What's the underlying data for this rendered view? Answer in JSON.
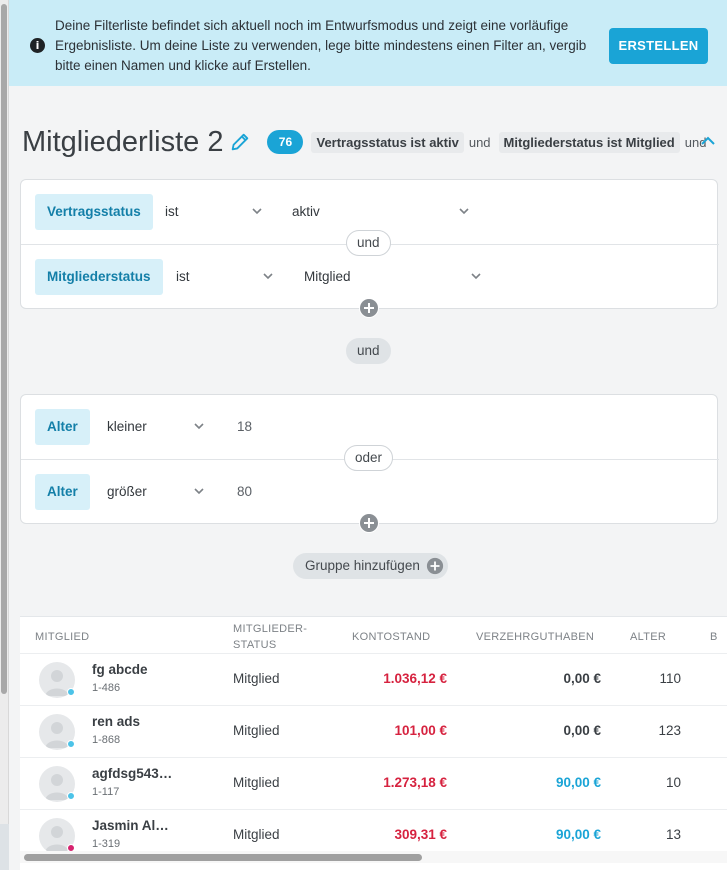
{
  "colors": {
    "accent": "#1aa4d6",
    "banner_bg": "#c9ecf7",
    "negative": "#d6223f",
    "positive": "#1aa4d6",
    "tag_bg": "#d7f0f9",
    "tag_text": "#137fa8"
  },
  "banner": {
    "icon": "info-icon",
    "message": "Deine Filterliste befindet sich aktuell noch im Entwurfsmodus und zeigt eine vorläufige Ergebnisliste. Um deine Liste zu verwenden, lege bitte mindestens einen Filter an, vergib bitte einen Namen und klicke auf Erstellen.",
    "create_label": "ERSTELLEN"
  },
  "header": {
    "title": "Mitgliederliste 2",
    "edit_icon": "pencil-icon",
    "count": "76",
    "summary": [
      {
        "chip": "Vertragsstatus ist aktiv",
        "conj": "und"
      },
      {
        "chip": "Mitgliederstatus ist Mitglied",
        "conj": "und"
      }
    ],
    "collapse_icon": "chevron-up-icon"
  },
  "group1": {
    "filters": [
      {
        "field": "Vertragsstatus",
        "operator": "ist",
        "value": "aktiv"
      },
      {
        "field": "Mitgliederstatus",
        "operator": "ist",
        "value": "Mitglied"
      }
    ],
    "connector": "und"
  },
  "group_connector": "und",
  "group2": {
    "filters": [
      {
        "field": "Alter",
        "operator": "kleiner",
        "value": "18"
      },
      {
        "field": "Alter",
        "operator": "größer",
        "value": "80"
      }
    ],
    "connector": "oder"
  },
  "add_group_label": "Gruppe hinzufügen",
  "table": {
    "columns": [
      "MITGLIED",
      "MITGLIEDER-",
      "STATUS",
      "KONTOSTAND",
      "VERZEHRGUTHABEN",
      "ALTER",
      "B"
    ],
    "rows": [
      {
        "name": "fg abcde",
        "id": "1-486",
        "status": "Mitglied",
        "kontostand": "1.036,12 €",
        "verzehr": "0,00 €",
        "alter": "110",
        "dot": "#4cc3e8",
        "konto_color": "#d6223f",
        "verz_color": "#3a3f44"
      },
      {
        "name": "ren ads",
        "id": "1-868",
        "status": "Mitglied",
        "kontostand": "101,00 €",
        "verzehr": "0,00 €",
        "alter": "123",
        "dot": "#4cc3e8",
        "konto_color": "#d6223f",
        "verz_color": "#3a3f44"
      },
      {
        "name": "agfdsg543…",
        "id": "1-117",
        "status": "Mitglied",
        "kontostand": "1.273,18 €",
        "verzehr": "90,00 €",
        "alter": "10",
        "dot": "#4cc3e8",
        "konto_color": "#d6223f",
        "verz_color": "#1aa4d6"
      },
      {
        "name": "Jasmin Al…",
        "id": "1-319",
        "status": "Mitglied",
        "kontostand": "309,31 €",
        "verzehr": "90,00 €",
        "alter": "13",
        "dot": "#d6226e",
        "konto_color": "#d6223f",
        "verz_color": "#1aa4d6"
      }
    ]
  }
}
